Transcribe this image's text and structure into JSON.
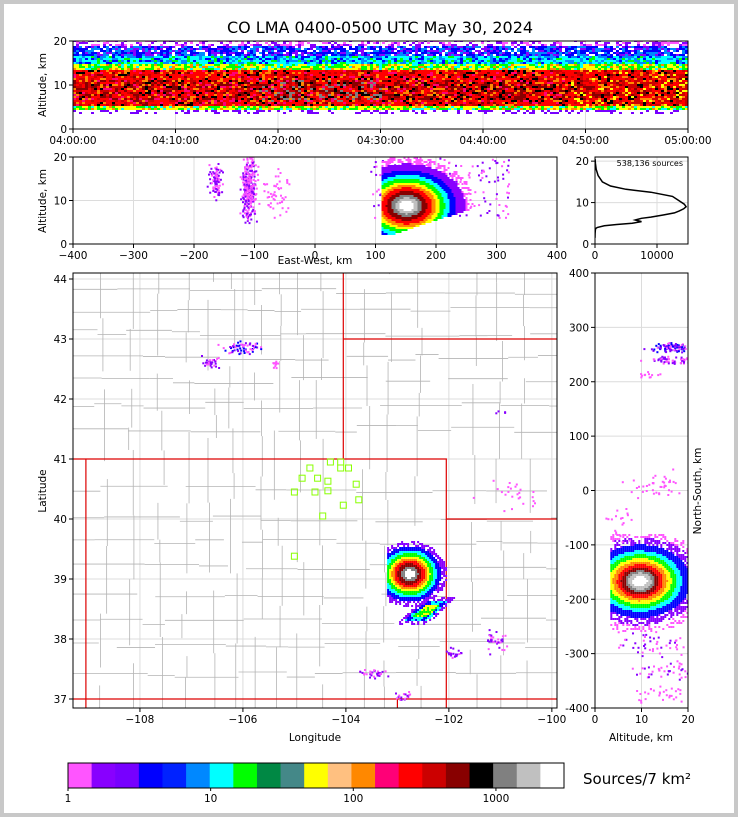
{
  "title": "CO LMA 0400-0500 UTC May 30, 2024",
  "colors": {
    "scale": [
      "#ff55ff",
      "#8800ff",
      "#7700ff",
      "#0000ff",
      "#0022ff",
      "#0088ff",
      "#00ffff",
      "#00ff00",
      "#008844",
      "#448888",
      "#ffff00",
      "#ffc080",
      "#ff8800",
      "#ff0077",
      "#ff0000",
      "#cc0000",
      "#880000",
      "#000000",
      "#808080",
      "#c0c0c0",
      "#ffffff"
    ],
    "state_border": "#dd0000",
    "county_border": "#b4b4b4",
    "station_marker": "#88ff00"
  },
  "chart_data": [
    {
      "type": "heatmap",
      "name": "altitude-vs-time",
      "xlabel": "",
      "ylabel": "Altitude, km",
      "x_ticks": [
        "04:00:00",
        "04:10:00",
        "04:20:00",
        "04:30:00",
        "04:40:00",
        "04:50:00",
        "05:00:00"
      ],
      "xlim_minutes": [
        0,
        60
      ],
      "ylim": [
        0,
        20
      ],
      "y_ticks": [
        0,
        10,
        20
      ],
      "grid": true
    },
    {
      "type": "heatmap",
      "name": "altitude-vs-east-west",
      "xlabel": "East-West, km",
      "ylabel": "Altitude, km",
      "xlim": [
        -400,
        400
      ],
      "x_ticks": [
        -400,
        -300,
        -200,
        -100,
        0,
        100,
        200,
        300,
        400
      ],
      "ylim": [
        0,
        20
      ],
      "y_ticks": [
        0,
        10,
        20
      ],
      "grid": true
    },
    {
      "type": "line",
      "name": "source-altitude-histogram",
      "annotation": "538,136 sources",
      "xlim": [
        0,
        15000
      ],
      "x_ticks": [
        0,
        10000
      ],
      "ylim": [
        0,
        21
      ],
      "y_ticks": [
        0,
        10,
        20
      ],
      "series": [
        {
          "x": [
            0,
            20,
            60,
            150,
            400,
            1500,
            3500,
            6000,
            7500,
            6500,
            7500,
            9000,
            11000,
            12800,
            13600,
            14300,
            14700,
            14400,
            13600,
            12500,
            9000,
            5000,
            2500,
            1200,
            500,
            200,
            60,
            20
          ],
          "y": [
            1.5,
            2.5,
            3.5,
            3.8,
            4.0,
            4.4,
            4.7,
            5.0,
            5.4,
            5.8,
            6.2,
            6.5,
            7.0,
            7.5,
            8.0,
            8.5,
            9.0,
            9.6,
            10.4,
            11.5,
            12.5,
            13.2,
            14.0,
            15.0,
            16.5,
            18.0,
            19.5,
            20.5
          ]
        }
      ],
      "grid": true
    },
    {
      "type": "heatmap",
      "name": "plan-view-map",
      "xlabel": "Longitude",
      "ylabel": "Latitude",
      "xlim": [
        -109.3,
        -99.9
      ],
      "x_ticks": [
        -108,
        -106,
        -104,
        -102,
        -100
      ],
      "x_tick_labels": [
        "−108",
        "−106",
        "−104",
        "−102",
        "−100"
      ],
      "ylim": [
        36.85,
        44.1
      ],
      "y_ticks": [
        37,
        38,
        39,
        40,
        41,
        42,
        43,
        44
      ],
      "grid": true
    },
    {
      "type": "heatmap",
      "name": "north-south-vs-altitude",
      "xlabel": "Altitude, km",
      "ylabel": "North-South, km",
      "xlim": [
        0,
        20
      ],
      "x_ticks": [
        0,
        10,
        20
      ],
      "ylim": [
        -400,
        400
      ],
      "y_ticks": [
        -400,
        -300,
        -200,
        -100,
        0,
        100,
        200,
        300,
        400
      ],
      "grid": true
    }
  ],
  "colorbar": {
    "tick_labels": [
      "1",
      "10",
      "100",
      "1000"
    ],
    "label": "Sources/7 km²"
  }
}
